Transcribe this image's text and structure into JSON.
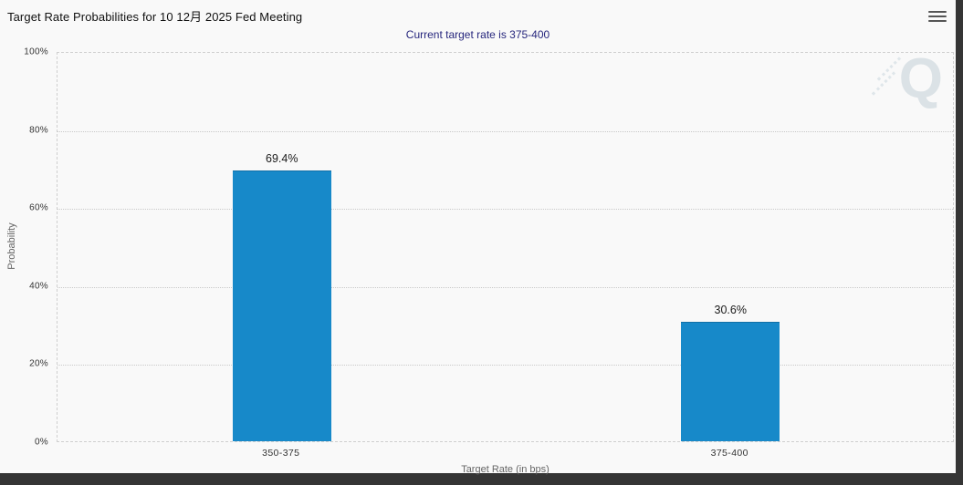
{
  "page": {
    "outer_background_color": "#353535",
    "widget_background_color": "#f9f9f9"
  },
  "header": {
    "title": "Target Rate Probabilities for 10 12月 2025 Fed Meeting",
    "subtitle": "Current target rate is 375-400",
    "subtitle_color": "#26267d",
    "menu_icon": "hamburger-icon"
  },
  "watermark": {
    "letter": "Q"
  },
  "chart_data": {
    "type": "bar",
    "title": "Target Rate Probabilities for 10 12月 2025 Fed Meeting",
    "subtitle": "Current target rate is 375-400",
    "categories": [
      "350-375",
      "375-400"
    ],
    "values": [
      69.4,
      30.6
    ],
    "value_labels": [
      "69.4%",
      "30.6%"
    ],
    "xlabel": "Target Rate (in bps)",
    "ylabel": "Probability",
    "ylim": [
      0,
      100
    ],
    "yticks": [
      0,
      20,
      40,
      60,
      80,
      100
    ],
    "ytick_suffix": "%",
    "grid": "horizontal-dotted",
    "legend": "none",
    "bar_color": "#1789c9",
    "bar_border_color": "#116fa6"
  }
}
